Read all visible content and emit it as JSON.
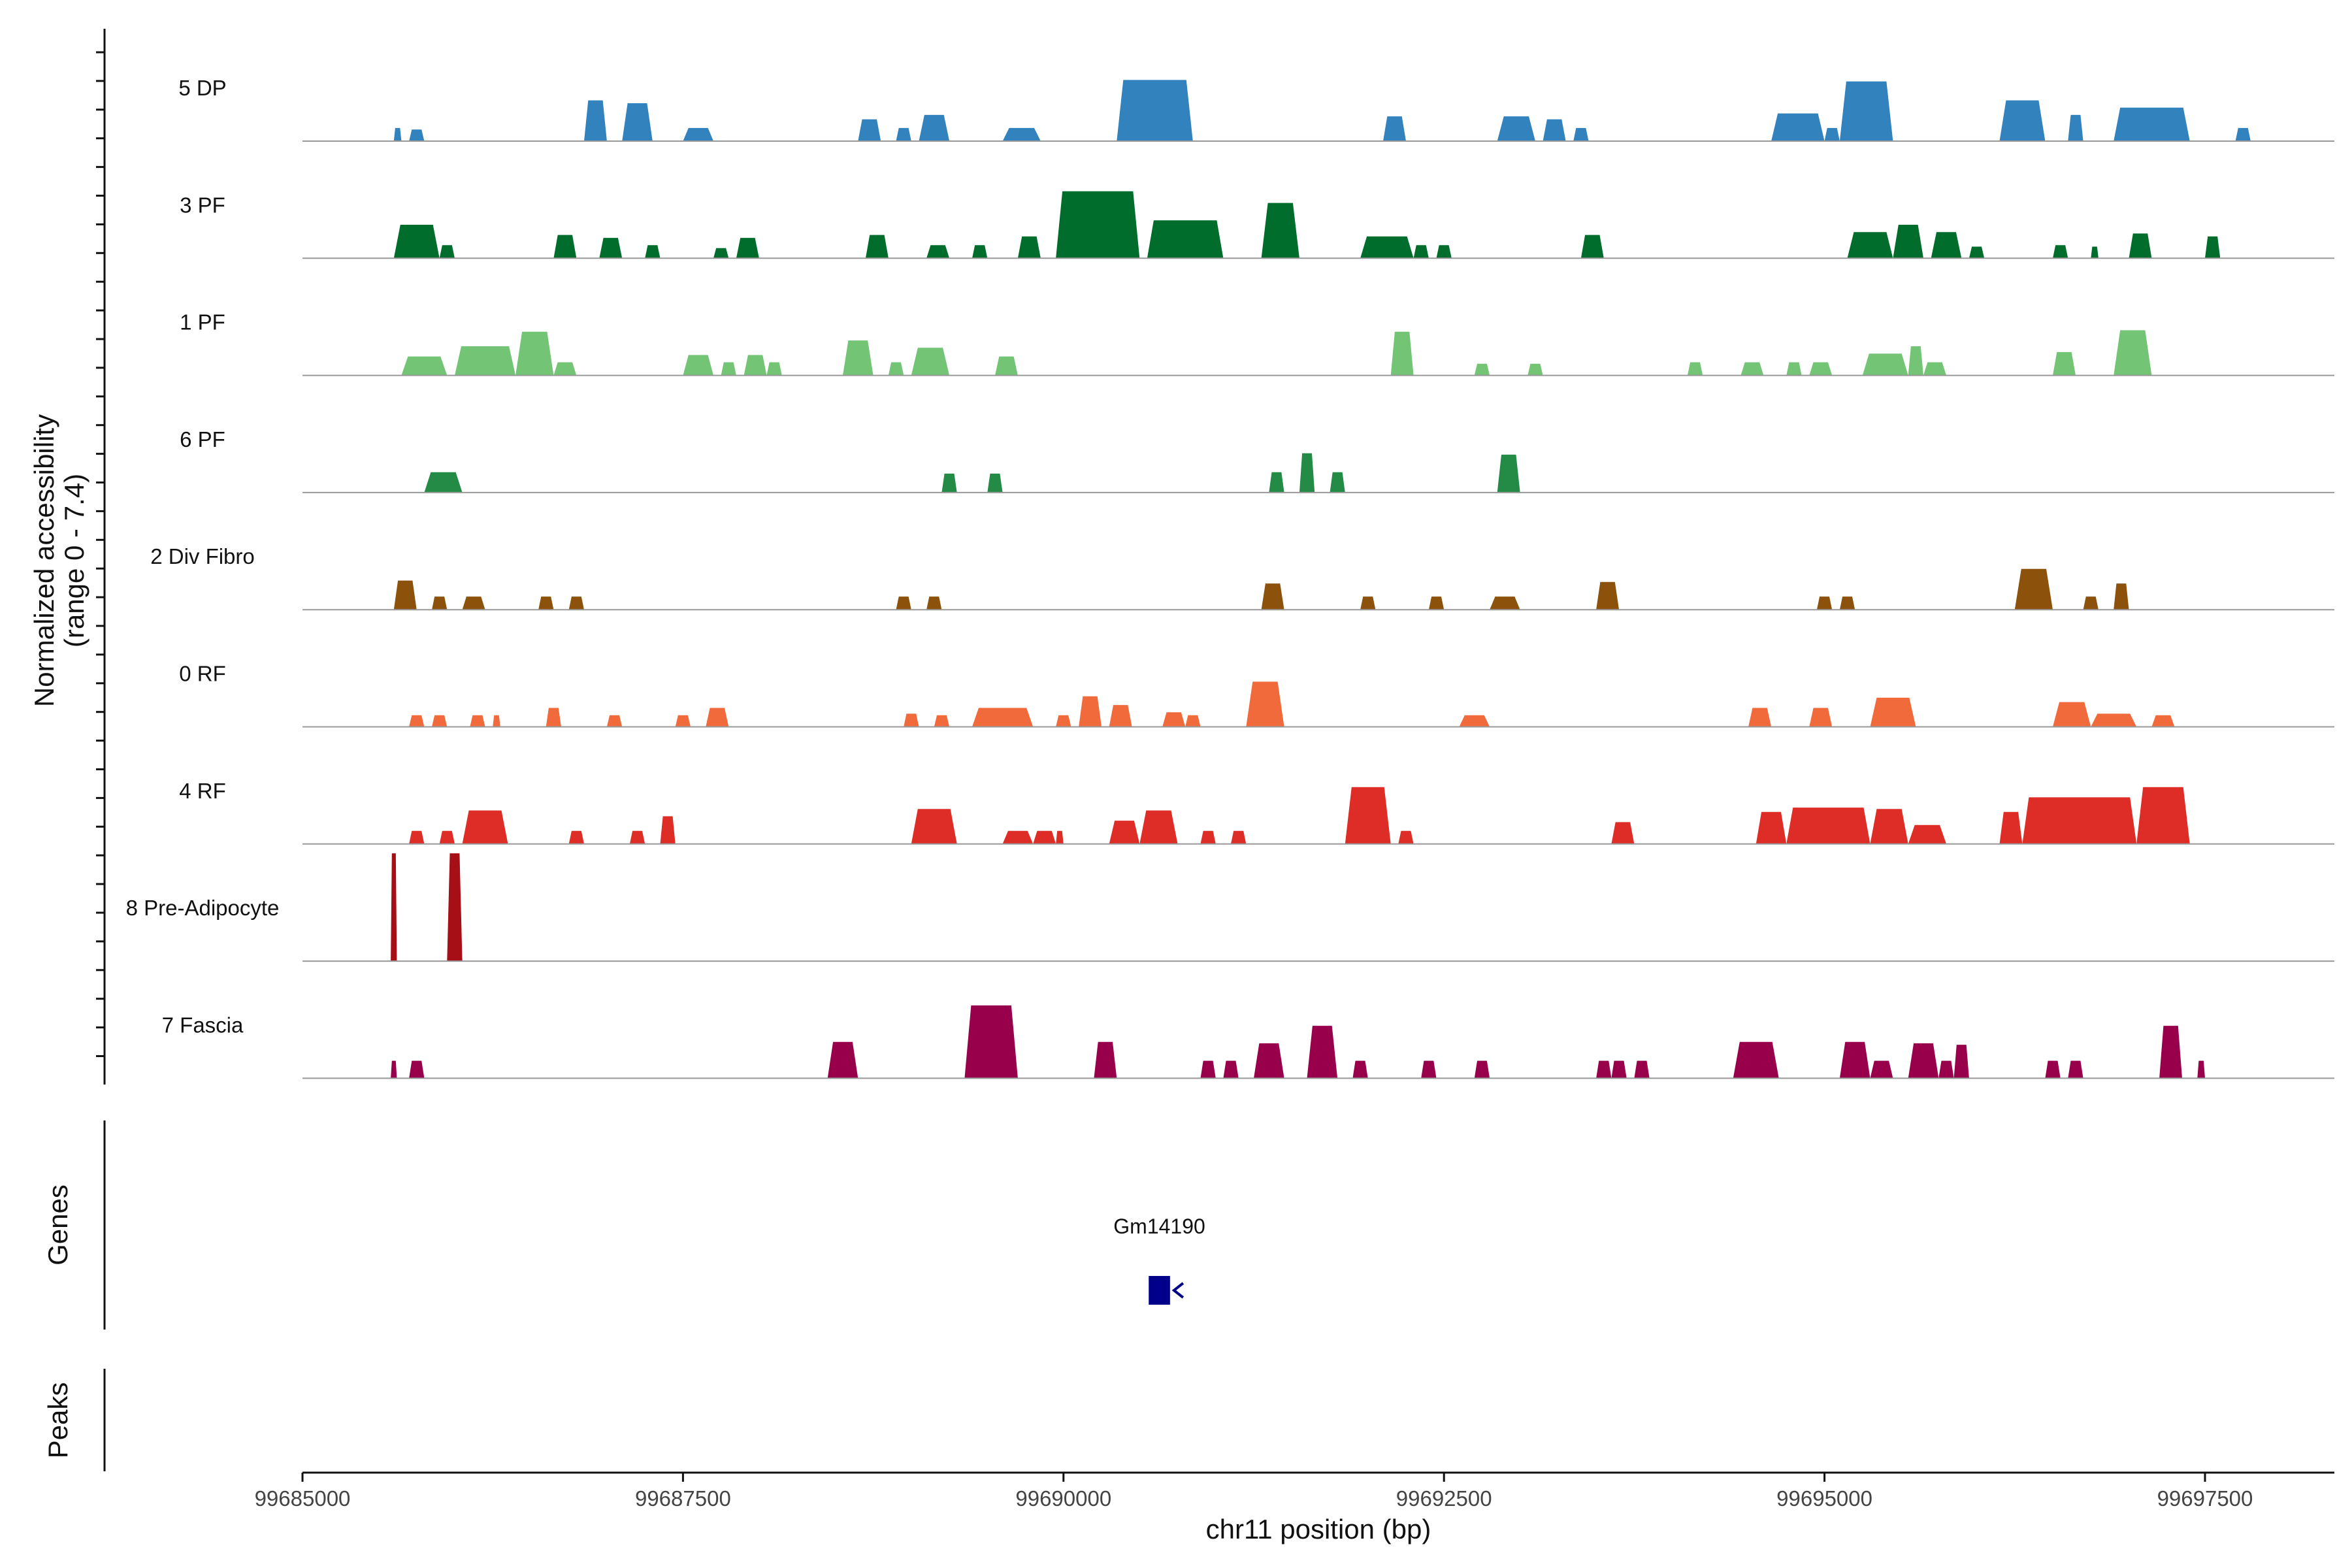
{
  "chart_data": {
    "type": "area",
    "y_axis_title": "Normalized accessibility",
    "y_axis_subtitle": "(range 0 - 7.4)",
    "x_axis_title": "chr11 position (bp)",
    "x_range": [
      99685000,
      99698350
    ],
    "x_ticks": [
      99685000,
      99687500,
      99690000,
      99692500,
      99695000,
      99697500
    ],
    "y_range": [
      0,
      7.4
    ],
    "tracks": [
      {
        "name": "5 DP",
        "color": "#3182bd",
        "peaks": [
          [
            99685600,
            99685650,
            0.9
          ],
          [
            99685700,
            99685800,
            0.8
          ],
          [
            99686850,
            99687000,
            2.8
          ],
          [
            99687100,
            99687300,
            2.6
          ],
          [
            99687500,
            99687700,
            0.9
          ],
          [
            99688650,
            99688800,
            1.5
          ],
          [
            99688900,
            99689000,
            0.9
          ],
          [
            99689050,
            99689250,
            1.8
          ],
          [
            99689600,
            99689850,
            0.9
          ],
          [
            99690350,
            99690850,
            4.2
          ],
          [
            99692100,
            99692250,
            1.7
          ],
          [
            99692850,
            99693100,
            1.7
          ],
          [
            99693150,
            99693300,
            1.5
          ],
          [
            99693350,
            99693450,
            0.9
          ],
          [
            99694650,
            99695000,
            1.9
          ],
          [
            99695000,
            99695100,
            0.9
          ],
          [
            99695100,
            99695450,
            4.1
          ],
          [
            99696150,
            99696450,
            2.8
          ],
          [
            99696600,
            99696700,
            1.8
          ],
          [
            99696900,
            99697400,
            2.3
          ],
          [
            99697700,
            99697800,
            0.9
          ]
        ]
      },
      {
        "name": "3 PF",
        "color": "#006d2c",
        "peaks": [
          [
            99685600,
            99685900,
            2.3
          ],
          [
            99685900,
            99686000,
            0.9
          ],
          [
            99686650,
            99686800,
            1.6
          ],
          [
            99686950,
            99687100,
            1.4
          ],
          [
            99687250,
            99687350,
            0.9
          ],
          [
            99687700,
            99687800,
            0.7
          ],
          [
            99687850,
            99688000,
            1.4
          ],
          [
            99688700,
            99688850,
            1.6
          ],
          [
            99689100,
            99689250,
            0.9
          ],
          [
            99689400,
            99689500,
            0.9
          ],
          [
            99689700,
            99689850,
            1.5
          ],
          [
            99689950,
            99690500,
            4.6
          ],
          [
            99690550,
            99691050,
            2.6
          ],
          [
            99691300,
            99691550,
            3.8
          ],
          [
            99691950,
            99692300,
            1.5
          ],
          [
            99692300,
            99692400,
            0.9
          ],
          [
            99692450,
            99692550,
            0.9
          ],
          [
            99693400,
            99693550,
            1.6
          ],
          [
            99695150,
            99695450,
            1.8
          ],
          [
            99695450,
            99695650,
            2.3
          ],
          [
            99695700,
            99695900,
            1.8
          ],
          [
            99695950,
            99696050,
            0.8
          ],
          [
            99696500,
            99696600,
            0.9
          ],
          [
            99696750,
            99696800,
            0.8
          ],
          [
            99697000,
            99697150,
            1.7
          ],
          [
            99697500,
            99697600,
            1.5
          ]
        ]
      },
      {
        "name": "1 PF",
        "color": "#74c476",
        "peaks": [
          [
            99685650,
            99685950,
            1.3
          ],
          [
            99686000,
            99686400,
            2.0
          ],
          [
            99686400,
            99686650,
            3.0
          ],
          [
            99686650,
            99686800,
            0.9
          ],
          [
            99687500,
            99687700,
            1.4
          ],
          [
            99687750,
            99687850,
            0.9
          ],
          [
            99687900,
            99688050,
            1.4
          ],
          [
            99688050,
            99688150,
            0.9
          ],
          [
            99688550,
            99688750,
            2.4
          ],
          [
            99688850,
            99688950,
            0.9
          ],
          [
            99689000,
            99689250,
            1.9
          ],
          [
            99689550,
            99689700,
            1.3
          ],
          [
            99692150,
            99692300,
            3.0
          ],
          [
            99692700,
            99692800,
            0.8
          ],
          [
            99693050,
            99693150,
            0.8
          ],
          [
            99694100,
            99694200,
            0.9
          ],
          [
            99694450,
            99694600,
            0.9
          ],
          [
            99694750,
            99694850,
            0.9
          ],
          [
            99694900,
            99695050,
            0.9
          ],
          [
            99695250,
            99695550,
            1.5
          ],
          [
            99695550,
            99695650,
            2.0
          ],
          [
            99695650,
            99695800,
            0.9
          ],
          [
            99696500,
            99696650,
            1.6
          ],
          [
            99696900,
            99697150,
            3.1
          ]
        ]
      },
      {
        "name": "6 PF",
        "color": "#238b45",
        "peaks": [
          [
            99685800,
            99686050,
            1.4
          ],
          [
            99689200,
            99689300,
            1.3
          ],
          [
            99689500,
            99689600,
            1.3
          ],
          [
            99691350,
            99691450,
            1.4
          ],
          [
            99691550,
            99691650,
            2.7
          ],
          [
            99691750,
            99691850,
            1.4
          ],
          [
            99692850,
            99693000,
            2.6
          ]
        ]
      },
      {
        "name": "2 Div Fibro",
        "color": "#8c510a",
        "peaks": [
          [
            99685600,
            99685750,
            2.0
          ],
          [
            99685850,
            99685950,
            0.9
          ],
          [
            99686050,
            99686200,
            0.9
          ],
          [
            99686550,
            99686650,
            0.9
          ],
          [
            99686750,
            99686850,
            0.9
          ],
          [
            99688900,
            99689000,
            0.9
          ],
          [
            99689100,
            99689200,
            0.9
          ],
          [
            99691300,
            99691450,
            1.8
          ],
          [
            99691950,
            99692050,
            0.9
          ],
          [
            99692400,
            99692500,
            0.9
          ],
          [
            99692800,
            99693000,
            0.9
          ],
          [
            99693500,
            99693650,
            1.9
          ],
          [
            99694950,
            99695050,
            0.9
          ],
          [
            99695100,
            99695200,
            0.9
          ],
          [
            99696250,
            99696500,
            2.8
          ],
          [
            99696700,
            99696800,
            0.9
          ],
          [
            99696900,
            99697000,
            1.8
          ]
        ]
      },
      {
        "name": "0 RF",
        "color": "#f16a3c",
        "peaks": [
          [
            99685700,
            99685800,
            0.8
          ],
          [
            99685850,
            99685950,
            0.8
          ],
          [
            99686100,
            99686200,
            0.8
          ],
          [
            99686250,
            99686300,
            0.8
          ],
          [
            99686600,
            99686700,
            1.3
          ],
          [
            99687000,
            99687100,
            0.8
          ],
          [
            99687450,
            99687550,
            0.8
          ],
          [
            99687650,
            99687800,
            1.3
          ],
          [
            99688950,
            99689050,
            0.9
          ],
          [
            99689150,
            99689250,
            0.8
          ],
          [
            99689400,
            99689800,
            1.3
          ],
          [
            99689950,
            99690050,
            0.8
          ],
          [
            99690100,
            99690250,
            2.1
          ],
          [
            99690300,
            99690450,
            1.5
          ],
          [
            99690650,
            99690800,
            1.0
          ],
          [
            99690800,
            99690900,
            0.8
          ],
          [
            99691200,
            99691450,
            3.1
          ],
          [
            99692600,
            99692800,
            0.8
          ],
          [
            99694500,
            99694650,
            1.3
          ],
          [
            99694900,
            99695050,
            1.3
          ],
          [
            99695300,
            99695600,
            2.0
          ],
          [
            99696500,
            99696750,
            1.7
          ],
          [
            99696750,
            99697050,
            0.9
          ],
          [
            99697150,
            99697300,
            0.8
          ]
        ]
      },
      {
        "name": "4 RF",
        "color": "#de2d26",
        "peaks": [
          [
            99685700,
            99685800,
            0.9
          ],
          [
            99685900,
            99686000,
            0.9
          ],
          [
            99686050,
            99686350,
            2.3
          ],
          [
            99686750,
            99686850,
            0.9
          ],
          [
            99687150,
            99687250,
            0.9
          ],
          [
            99687350,
            99687450,
            1.9
          ],
          [
            99689000,
            99689300,
            2.4
          ],
          [
            99689600,
            99689800,
            0.9
          ],
          [
            99689800,
            99689950,
            0.9
          ],
          [
            99689950,
            99690000,
            0.9
          ],
          [
            99690300,
            99690500,
            1.6
          ],
          [
            99690500,
            99690750,
            2.3
          ],
          [
            99690900,
            99691000,
            0.9
          ],
          [
            99691100,
            99691200,
            0.9
          ],
          [
            99691850,
            99692150,
            3.9
          ],
          [
            99692200,
            99692300,
            0.9
          ],
          [
            99693600,
            99693750,
            1.5
          ],
          [
            99694550,
            99694750,
            2.2
          ],
          [
            99694750,
            99695300,
            2.5
          ],
          [
            99695300,
            99695550,
            2.4
          ],
          [
            99695550,
            99695800,
            1.3
          ],
          [
            99696150,
            99696300,
            2.2
          ],
          [
            99696300,
            99697050,
            3.2
          ],
          [
            99697050,
            99697400,
            3.9
          ]
        ]
      },
      {
        "name": "8 Pre-Adipocyte",
        "color": "#a50f15",
        "peaks": [
          [
            99685580,
            99685620,
            7.4
          ],
          [
            99685950,
            99686050,
            7.4
          ]
        ]
      },
      {
        "name": "7 Fascia",
        "color": "#99004c",
        "peaks": [
          [
            99685580,
            99685620,
            1.2
          ],
          [
            99685700,
            99685800,
            1.2
          ],
          [
            99688450,
            99688650,
            2.5
          ],
          [
            99689350,
            99689700,
            5.0
          ],
          [
            99690200,
            99690350,
            2.5
          ],
          [
            99690900,
            99691000,
            1.2
          ],
          [
            99691050,
            99691150,
            1.2
          ],
          [
            99691250,
            99691450,
            2.4
          ],
          [
            99691600,
            99691800,
            3.6
          ],
          [
            99691900,
            99692000,
            1.2
          ],
          [
            99692350,
            99692450,
            1.2
          ],
          [
            99692700,
            99692800,
            1.2
          ],
          [
            99693500,
            99693600,
            1.2
          ],
          [
            99693600,
            99693700,
            1.2
          ],
          [
            99693750,
            99693850,
            1.2
          ],
          [
            99694400,
            99694700,
            2.5
          ],
          [
            99695100,
            99695300,
            2.5
          ],
          [
            99695300,
            99695450,
            1.2
          ],
          [
            99695550,
            99695750,
            2.4
          ],
          [
            99695750,
            99695850,
            1.2
          ],
          [
            99695850,
            99695950,
            2.3
          ],
          [
            99696450,
            99696550,
            1.2
          ],
          [
            99696600,
            99696700,
            1.2
          ],
          [
            99697200,
            99697350,
            3.6
          ],
          [
            99697450,
            99697500,
            1.2
          ]
        ]
      }
    ],
    "genes_panel_title": "Genes",
    "peaks_panel_title": "Peaks",
    "genes": [
      {
        "name": "Gm14190",
        "start": 99690560,
        "end": 99690700,
        "strand": "-",
        "color": "#00008b"
      }
    ]
  }
}
